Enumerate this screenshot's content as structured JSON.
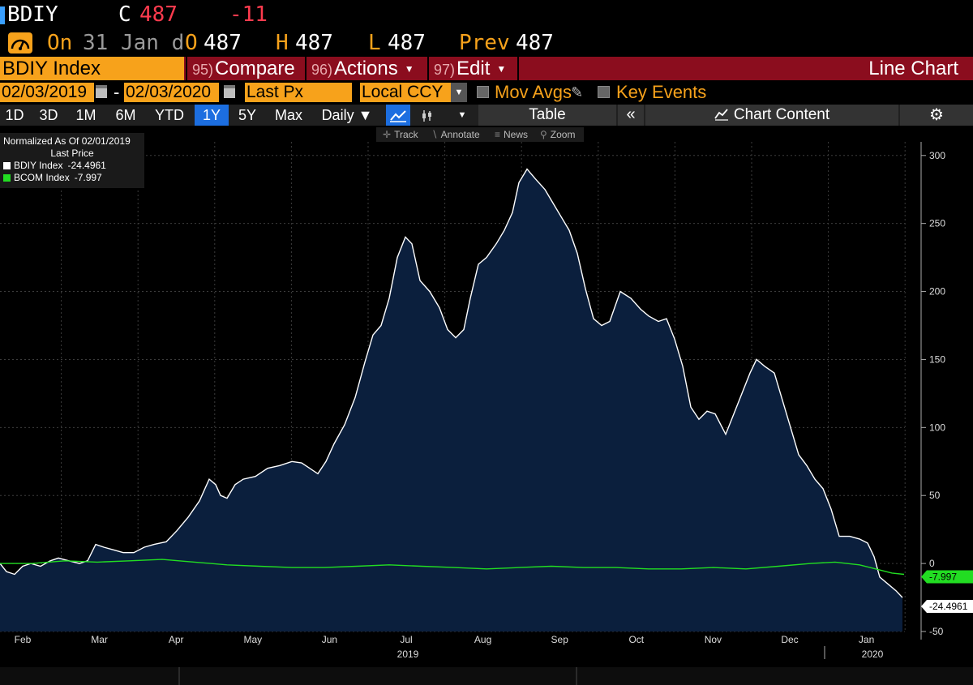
{
  "header": {
    "ticker": "BDIY",
    "close_label": "C",
    "close_value": "487",
    "change_value": "-11",
    "on_label": "On",
    "on_date": "31 Jan d",
    "open_label": "O",
    "open_value": "487",
    "high_label": "H",
    "high_value": "487",
    "low_label": "L",
    "low_value": "487",
    "prev_label": "Prev",
    "prev_value": "487"
  },
  "toolbar": {
    "index_name": "BDIY Index",
    "compare_num": "95)",
    "compare_label": "Compare",
    "actions_num": "96)",
    "actions_label": "Actions",
    "edit_num": "97)",
    "edit_label": "Edit",
    "chart_type": "Line Chart"
  },
  "range": {
    "start_date": "02/03/2019",
    "separator": "-",
    "end_date": "02/03/2020",
    "field": "Last Px",
    "currency": "Local CCY",
    "mov_avgs_label": "Mov Avgs",
    "key_events_label": "Key Events"
  },
  "periods": {
    "items": [
      "1D",
      "3D",
      "1M",
      "6M",
      "YTD",
      "1Y",
      "5Y",
      "Max"
    ],
    "active": "1Y",
    "frequency": "Daily",
    "table_label": "Table",
    "chart_content_label": "Chart Content"
  },
  "tools": {
    "track": "Track",
    "annotate": "Annotate",
    "news": "News",
    "zoom": "Zoom"
  },
  "legend": {
    "title": "Normalized As Of 02/01/2019",
    "subtitle": "Last Price",
    "items": [
      {
        "name": "BDIY Index",
        "value": "-24.4961",
        "color": "#ffffff"
      },
      {
        "name": "BCOM Index",
        "value": "-7.997",
        "color": "#22dd22"
      }
    ]
  },
  "chart_data": {
    "type": "area",
    "x_labels": [
      "Feb",
      "Mar",
      "Apr",
      "May",
      "Jun",
      "Jul",
      "Aug",
      "Sep",
      "Oct",
      "Nov",
      "Dec",
      "Jan"
    ],
    "year_labels": [
      "2019",
      "2020"
    ],
    "ylim": [
      -50,
      310
    ],
    "y_ticks": [
      300,
      250,
      200,
      150,
      100,
      50,
      0,
      -50
    ],
    "grid": true,
    "series": [
      {
        "name": "BDIY Index",
        "color": "#ffffff",
        "fill": "#0b1f3d",
        "last_label": "-24.4961",
        "points": [
          [
            0,
            0
          ],
          [
            8,
            -6
          ],
          [
            18,
            -8
          ],
          [
            28,
            -2
          ],
          [
            38,
            0
          ],
          [
            50,
            -2
          ],
          [
            62,
            2
          ],
          [
            72,
            4
          ],
          [
            85,
            2
          ],
          [
            98,
            0
          ],
          [
            108,
            2
          ],
          [
            118,
            14
          ],
          [
            128,
            12
          ],
          [
            140,
            10
          ],
          [
            152,
            8
          ],
          [
            165,
            8
          ],
          [
            178,
            12
          ],
          [
            190,
            14
          ],
          [
            205,
            16
          ],
          [
            218,
            24
          ],
          [
            232,
            34
          ],
          [
            246,
            46
          ],
          [
            258,
            62
          ],
          [
            266,
            58
          ],
          [
            272,
            50
          ],
          [
            280,
            48
          ],
          [
            290,
            58
          ],
          [
            300,
            62
          ],
          [
            315,
            64
          ],
          [
            330,
            70
          ],
          [
            345,
            72
          ],
          [
            360,
            75
          ],
          [
            372,
            74
          ],
          [
            382,
            70
          ],
          [
            392,
            66
          ],
          [
            402,
            75
          ],
          [
            412,
            88
          ],
          [
            425,
            102
          ],
          [
            438,
            122
          ],
          [
            450,
            148
          ],
          [
            460,
            168
          ],
          [
            470,
            175
          ],
          [
            480,
            195
          ],
          [
            490,
            225
          ],
          [
            500,
            240
          ],
          [
            508,
            235
          ],
          [
            518,
            208
          ],
          [
            530,
            200
          ],
          [
            542,
            188
          ],
          [
            552,
            172
          ],
          [
            562,
            166
          ],
          [
            572,
            172
          ],
          [
            580,
            195
          ],
          [
            590,
            220
          ],
          [
            600,
            225
          ],
          [
            612,
            235
          ],
          [
            622,
            245
          ],
          [
            632,
            258
          ],
          [
            640,
            280
          ],
          [
            650,
            290
          ],
          [
            660,
            283
          ],
          [
            672,
            275
          ],
          [
            682,
            265
          ],
          [
            692,
            255
          ],
          [
            702,
            245
          ],
          [
            712,
            228
          ],
          [
            722,
            202
          ],
          [
            732,
            180
          ],
          [
            742,
            175
          ],
          [
            752,
            178
          ],
          [
            765,
            200
          ],
          [
            778,
            195
          ],
          [
            790,
            187
          ],
          [
            800,
            182
          ],
          [
            812,
            178
          ],
          [
            822,
            180
          ],
          [
            832,
            165
          ],
          [
            842,
            145
          ],
          [
            852,
            115
          ],
          [
            862,
            106
          ],
          [
            872,
            112
          ],
          [
            882,
            110
          ],
          [
            895,
            95
          ],
          [
            905,
            110
          ],
          [
            915,
            125
          ],
          [
            925,
            140
          ],
          [
            933,
            150
          ],
          [
            943,
            145
          ],
          [
            955,
            140
          ],
          [
            965,
            120
          ],
          [
            975,
            100
          ],
          [
            985,
            80
          ],
          [
            995,
            72
          ],
          [
            1005,
            62
          ],
          [
            1015,
            55
          ],
          [
            1025,
            40
          ],
          [
            1035,
            20
          ],
          [
            1048,
            20
          ],
          [
            1060,
            18
          ],
          [
            1070,
            15
          ],
          [
            1078,
            5
          ],
          [
            1085,
            -10
          ],
          [
            1095,
            -15
          ],
          [
            1105,
            -20
          ],
          [
            1113,
            -25
          ]
        ]
      },
      {
        "name": "BCOM Index",
        "color": "#22dd22",
        "last_label": "-7.997",
        "points": [
          [
            0,
            0
          ],
          [
            40,
            0
          ],
          [
            80,
            2
          ],
          [
            120,
            1
          ],
          [
            160,
            2
          ],
          [
            200,
            3
          ],
          [
            240,
            1
          ],
          [
            280,
            -1
          ],
          [
            320,
            -2
          ],
          [
            360,
            -3
          ],
          [
            400,
            -3
          ],
          [
            440,
            -2
          ],
          [
            480,
            -1
          ],
          [
            520,
            -2
          ],
          [
            560,
            -3
          ],
          [
            600,
            -4
          ],
          [
            640,
            -3
          ],
          [
            680,
            -2
          ],
          [
            720,
            -3
          ],
          [
            760,
            -3
          ],
          [
            800,
            -4
          ],
          [
            840,
            -4
          ],
          [
            880,
            -3
          ],
          [
            920,
            -4
          ],
          [
            960,
            -2
          ],
          [
            1000,
            0
          ],
          [
            1030,
            1
          ],
          [
            1060,
            -1
          ],
          [
            1080,
            -4
          ],
          [
            1100,
            -7
          ],
          [
            1115,
            -8
          ]
        ]
      }
    ]
  }
}
